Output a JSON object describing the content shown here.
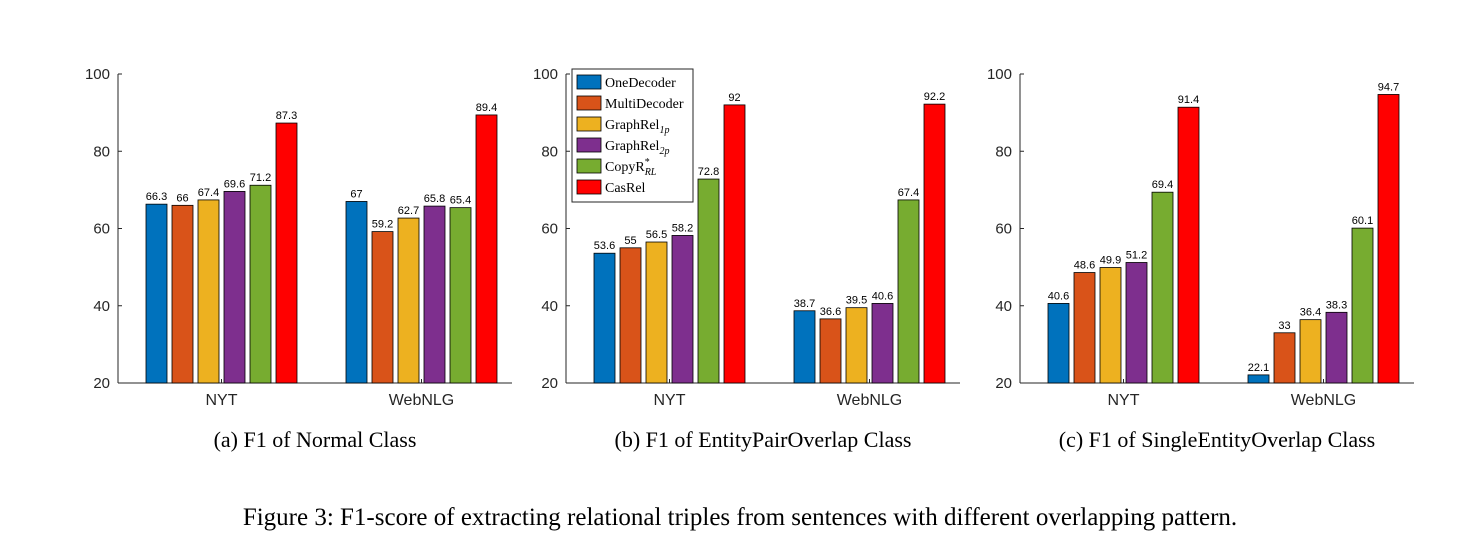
{
  "figure_caption": "Figure 3: F1-score of extracting relational triples from sentences with different overlapping pattern.",
  "legend_labels": [
    {
      "base": "OneDecoder",
      "sub": "",
      "sup": ""
    },
    {
      "base": "MultiDecoder",
      "sub": "",
      "sup": ""
    },
    {
      "base": "GraphRel",
      "sub": "1p",
      "sup": ""
    },
    {
      "base": "GraphRel",
      "sub": "2p",
      "sup": ""
    },
    {
      "base": "CopyR",
      "sub": "RL",
      "sup": "*"
    },
    {
      "base": "CasRel",
      "sub": "",
      "sup": ""
    }
  ],
  "colors": [
    "#0072BD",
    "#D95319",
    "#EDB120",
    "#7E2F8E",
    "#77AC30",
    "#FF0000"
  ],
  "chart_data": [
    {
      "type": "bar",
      "caption": "(a)  F1 of Normal Class",
      "categories": [
        "NYT",
        "WebNLG"
      ],
      "series": [
        {
          "name": "OneDecoder",
          "values": [
            66.3,
            67
          ]
        },
        {
          "name": "MultiDecoder",
          "values": [
            66,
            59.2
          ]
        },
        {
          "name": "GraphRel1p",
          "values": [
            67.4,
            62.7
          ]
        },
        {
          "name": "GraphRel2p",
          "values": [
            69.6,
            65.8
          ]
        },
        {
          "name": "CopyR*RL",
          "values": [
            71.2,
            65.4
          ]
        },
        {
          "name": "CasRel",
          "values": [
            87.3,
            89.4
          ]
        }
      ],
      "ylim": [
        20,
        100
      ],
      "yticks": [
        20,
        40,
        60,
        80,
        100
      ],
      "value_labels": [
        [
          "66.3",
          "67"
        ],
        [
          "66",
          "59.2"
        ],
        [
          "67.4",
          "62.7"
        ],
        [
          "69.6",
          "65.8"
        ],
        [
          "71.2",
          "65.4"
        ],
        [
          "87.3",
          "89.4"
        ]
      ],
      "legend": false
    },
    {
      "type": "bar",
      "caption": "(b)  F1 of EntityPairOverlap Class",
      "categories": [
        "NYT",
        "WebNLG"
      ],
      "series": [
        {
          "name": "OneDecoder",
          "values": [
            53.6,
            38.7
          ]
        },
        {
          "name": "MultiDecoder",
          "values": [
            55,
            36.6
          ]
        },
        {
          "name": "GraphRel1p",
          "values": [
            56.5,
            39.5
          ]
        },
        {
          "name": "GraphRel2p",
          "values": [
            58.2,
            40.6
          ]
        },
        {
          "name": "CopyR*RL",
          "values": [
            72.8,
            67.4
          ]
        },
        {
          "name": "CasRel",
          "values": [
            92,
            92.2
          ]
        }
      ],
      "ylim": [
        20,
        100
      ],
      "yticks": [
        20,
        40,
        60,
        80,
        100
      ],
      "value_labels": [
        [
          "53.6",
          "38.7"
        ],
        [
          "55",
          "36.6"
        ],
        [
          "56.5",
          "39.5"
        ],
        [
          "58.2",
          "40.6"
        ],
        [
          "72.8",
          "67.4"
        ],
        [
          "92",
          "92.2"
        ]
      ],
      "legend": true
    },
    {
      "type": "bar",
      "caption": "(c)  F1 of SingleEntityOverlap Class",
      "categories": [
        "NYT",
        "WebNLG"
      ],
      "series": [
        {
          "name": "OneDecoder",
          "values": [
            40.6,
            22.1
          ]
        },
        {
          "name": "MultiDecoder",
          "values": [
            48.6,
            33
          ]
        },
        {
          "name": "GraphRel1p",
          "values": [
            49.9,
            36.4
          ]
        },
        {
          "name": "GraphRel2p",
          "values": [
            51.2,
            38.3
          ]
        },
        {
          "name": "CopyR*RL",
          "values": [
            69.4,
            60.1
          ]
        },
        {
          "name": "CasRel",
          "values": [
            91.4,
            94.7
          ]
        }
      ],
      "ylim": [
        20,
        100
      ],
      "yticks": [
        20,
        40,
        60,
        80,
        100
      ],
      "value_labels": [
        [
          "40.6",
          "22.1"
        ],
        [
          "48.6",
          "33"
        ],
        [
          "49.9",
          "36.4"
        ],
        [
          "51.2",
          "38.3"
        ],
        [
          "69.4",
          "60.1"
        ],
        [
          "91.4",
          "94.7"
        ]
      ],
      "legend": false
    }
  ]
}
